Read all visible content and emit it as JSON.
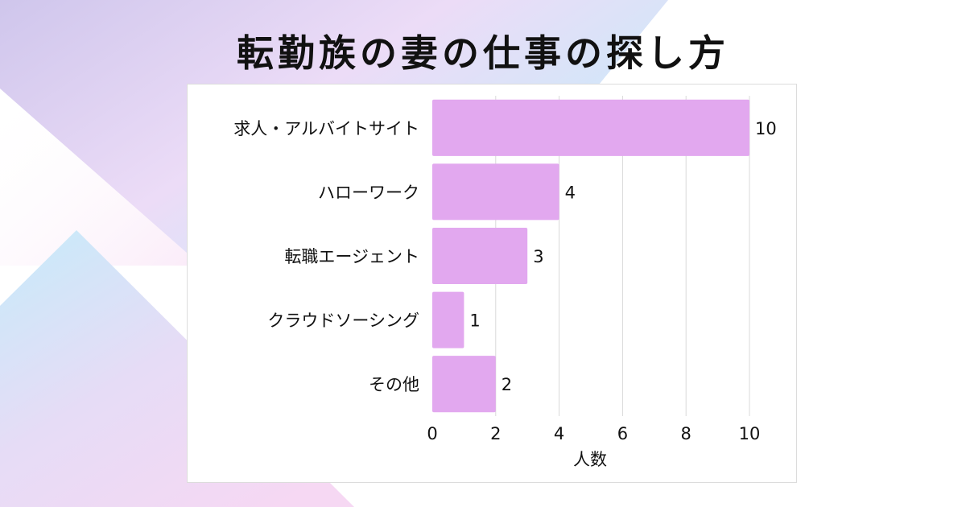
{
  "page": {
    "title": "転勤族の妻の仕事の探し方"
  },
  "colors": {
    "bar": "#e2a8ef",
    "gridline": "#d9d9d9",
    "text": "#111111",
    "bg_lavender": "#d6cdef",
    "bg_pink": "#f4d6f3",
    "bg_cyan": "#c8ecf9"
  },
  "chart_data": {
    "type": "bar",
    "orientation": "horizontal",
    "categories": [
      "求人・アルバイトサイト",
      "ハローワーク",
      "転職エージェント",
      "クラウドソーシング",
      "その他"
    ],
    "values": [
      10,
      4,
      3,
      1,
      2
    ],
    "xlabel": "人数",
    "ylabel": "",
    "xlim": [
      0,
      10
    ],
    "x_ticks": [
      0,
      2,
      4,
      6,
      8,
      10
    ],
    "grid": "vertical",
    "legend": "none",
    "data_labels": true
  }
}
